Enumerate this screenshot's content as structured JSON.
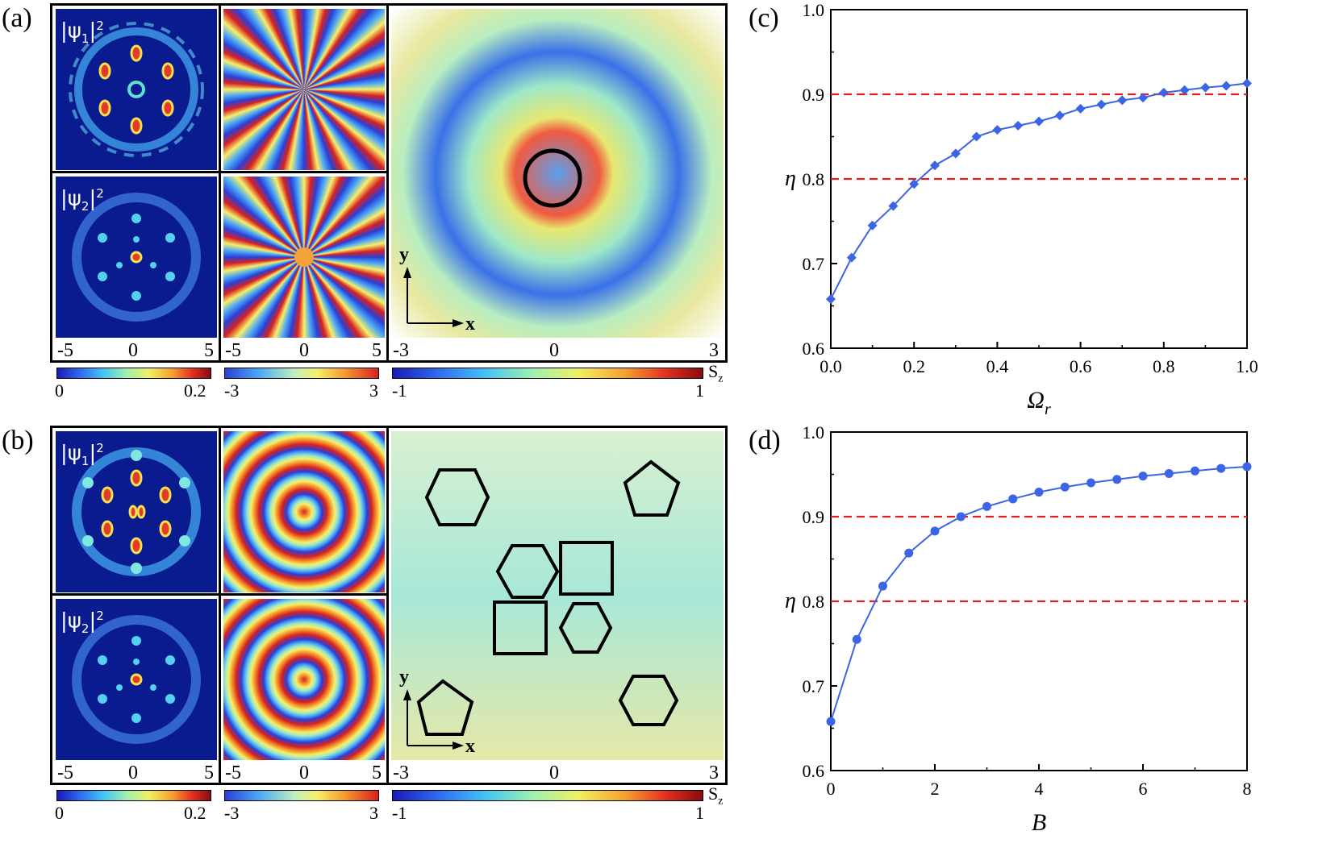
{
  "panel_labels": {
    "a": "(a)",
    "b": "(b)",
    "c": "(c)",
    "d": "(d)"
  },
  "maps": {
    "psi1_label": "|ψ1|2",
    "psi2_label": "|ψ2|2",
    "density_ticks": [
      "-5",
      "0",
      "5"
    ],
    "phase_ticks": [
      "-5",
      "0",
      "5"
    ],
    "spin_ticks": [
      "-3",
      "0",
      "3"
    ],
    "axis_y": "y",
    "axis_x": "x"
  },
  "colorbars": {
    "density": {
      "min": "0",
      "max": "0.2"
    },
    "phase": {
      "min": "-3",
      "max": "3"
    },
    "spin": {
      "min": "-1",
      "max": "1",
      "label": "S",
      "label_sub": "z"
    }
  },
  "colors": {
    "line": "#3b64e6",
    "ref": "#e02020"
  },
  "chart_data": [
    {
      "id": "c",
      "type": "line",
      "marker": "diamond",
      "xlabel": "Ω",
      "xlabel_sub": "r",
      "ylabel": "η",
      "xlim": [
        0,
        1.0
      ],
      "ylim": [
        0.6,
        1.0
      ],
      "xticks": [
        "0.0",
        "0.2",
        "0.4",
        "0.6",
        "0.8",
        "1.0"
      ],
      "yticks": [
        "0.6",
        "0.7",
        "0.8",
        "0.9",
        "1.0"
      ],
      "reference_lines": [
        0.9,
        0.8
      ],
      "x": [
        0,
        0.05,
        0.1,
        0.15,
        0.2,
        0.25,
        0.3,
        0.35,
        0.4,
        0.45,
        0.5,
        0.55,
        0.6,
        0.65,
        0.7,
        0.75,
        0.8,
        0.85,
        0.9,
        0.95,
        1.0
      ],
      "y": [
        0.658,
        0.707,
        0.745,
        0.768,
        0.794,
        0.816,
        0.83,
        0.85,
        0.858,
        0.863,
        0.868,
        0.875,
        0.883,
        0.888,
        0.893,
        0.896,
        0.902,
        0.905,
        0.908,
        0.91,
        0.913
      ]
    },
    {
      "id": "d",
      "type": "line",
      "marker": "circle",
      "xlabel": "B",
      "xlabel_sub": "",
      "ylabel": "η",
      "xlim": [
        0,
        8
      ],
      "ylim": [
        0.6,
        1.0
      ],
      "xticks": [
        "0",
        "2",
        "4",
        "6",
        "8"
      ],
      "yticks": [
        "0.6",
        "0.7",
        "0.8",
        "0.9",
        "1.0"
      ],
      "reference_lines": [
        0.9,
        0.8
      ],
      "x": [
        0,
        0.5,
        1,
        1.5,
        2,
        2.5,
        3,
        3.5,
        4,
        4.5,
        5,
        5.5,
        6,
        6.5,
        7,
        7.5,
        8
      ],
      "y": [
        0.658,
        0.755,
        0.818,
        0.857,
        0.883,
        0.9,
        0.912,
        0.921,
        0.929,
        0.935,
        0.94,
        0.944,
        0.948,
        0.951,
        0.954,
        0.957,
        0.959
      ]
    }
  ]
}
